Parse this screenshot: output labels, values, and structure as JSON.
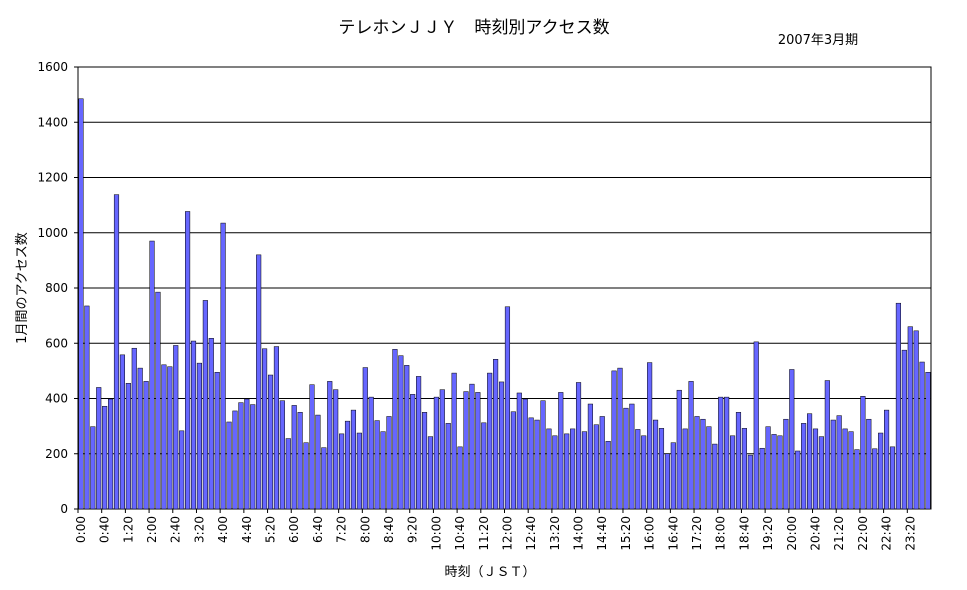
{
  "chart_data": {
    "type": "bar",
    "title": "テレホンＪＪＹ　時刻別アクセス数",
    "subtitle": "2007年3月期",
    "xlabel": "時刻（ＪＳＴ）",
    "ylabel": "1月間のアクセス数",
    "ylim": [
      0,
      1600
    ],
    "yticks": [
      0,
      200,
      400,
      600,
      800,
      1000,
      1200,
      1400,
      1600
    ],
    "grid": true,
    "bar_color": "#6666ff",
    "x_tick_labels": [
      "0:00",
      "0:40",
      "1:20",
      "2:00",
      "2:40",
      "3:20",
      "4:00",
      "4:40",
      "5:20",
      "6:00",
      "6:40",
      "7:20",
      "8:00",
      "8:40",
      "9:20",
      "10:00",
      "10:40",
      "11:20",
      "12:00",
      "12:40",
      "13:20",
      "14:00",
      "14:40",
      "15:20",
      "16:00",
      "16:40",
      "17:20",
      "18:00",
      "18:40",
      "19:20",
      "20:00",
      "20:40",
      "21:20",
      "22:00",
      "22:40",
      "23:20"
    ],
    "categories": [
      "0:00",
      "0:10",
      "0:20",
      "0:30",
      "0:40",
      "0:50",
      "1:00",
      "1:10",
      "1:20",
      "1:30",
      "1:40",
      "1:50",
      "2:00",
      "2:10",
      "2:20",
      "2:30",
      "2:40",
      "2:50",
      "3:00",
      "3:10",
      "3:20",
      "3:30",
      "3:40",
      "3:50",
      "4:00",
      "4:10",
      "4:20",
      "4:30",
      "4:40",
      "4:50",
      "5:00",
      "5:10",
      "5:20",
      "5:30",
      "5:40",
      "5:50",
      "6:00",
      "6:10",
      "6:20",
      "6:30",
      "6:40",
      "6:50",
      "7:00",
      "7:10",
      "7:20",
      "7:30",
      "7:40",
      "7:50",
      "8:00",
      "8:10",
      "8:20",
      "8:30",
      "8:40",
      "8:50",
      "9:00",
      "9:10",
      "9:20",
      "9:30",
      "9:40",
      "9:50",
      "10:00",
      "10:10",
      "10:20",
      "10:30",
      "10:40",
      "10:50",
      "11:00",
      "11:10",
      "11:20",
      "11:30",
      "11:40",
      "11:50",
      "12:00",
      "12:10",
      "12:20",
      "12:30",
      "12:40",
      "12:50",
      "13:00",
      "13:10",
      "13:20",
      "13:30",
      "13:40",
      "13:50",
      "14:00",
      "14:10",
      "14:20",
      "14:30",
      "14:40",
      "14:50",
      "15:00",
      "15:10",
      "15:20",
      "15:30",
      "15:40",
      "15:50",
      "16:00",
      "16:10",
      "16:20",
      "16:30",
      "16:40",
      "16:50",
      "17:00",
      "17:10",
      "17:20",
      "17:30",
      "17:40",
      "17:50",
      "18:00",
      "18:10",
      "18:20",
      "18:30",
      "18:40",
      "18:50",
      "19:00",
      "19:10",
      "19:20",
      "19:30",
      "19:40",
      "19:50",
      "20:00",
      "20:10",
      "20:20",
      "20:30",
      "20:40",
      "20:50",
      "21:00",
      "21:10",
      "21:20",
      "21:30",
      "21:40",
      "21:50",
      "22:00",
      "22:10",
      "22:20",
      "22:30",
      "22:40",
      "22:50",
      "23:00",
      "23:10",
      "23:20",
      "23:30",
      "23:40",
      "23:50"
    ],
    "values": [
      1485,
      735,
      298,
      440,
      372,
      398,
      1138,
      558,
      455,
      582,
      510,
      462,
      970,
      785,
      522,
      515,
      592,
      283,
      1077,
      608,
      528,
      755,
      618,
      495,
      1035,
      315,
      355,
      385,
      398,
      378,
      920,
      580,
      485,
      588,
      392,
      255,
      375,
      350,
      240,
      450,
      340,
      222,
      462,
      432,
      272,
      318,
      358,
      275,
      512,
      405,
      320,
      280,
      335,
      578,
      555,
      520,
      415,
      480,
      350,
      262,
      405,
      432,
      310,
      492,
      225,
      425,
      452,
      422,
      312,
      492,
      542,
      460,
      732,
      352,
      420,
      398,
      330,
      322,
      392,
      290,
      265,
      422,
      272,
      290,
      458,
      280,
      380,
      305,
      335,
      245,
      500,
      510,
      365,
      380,
      288,
      265,
      530,
      322,
      292,
      200,
      240,
      430,
      290,
      462,
      335,
      325,
      298,
      235,
      405,
      405,
      265,
      350,
      292,
      195,
      605,
      220,
      298,
      270,
      265,
      325,
      505,
      210,
      310,
      345,
      290,
      262,
      465,
      322,
      338,
      290,
      280,
      215,
      408,
      325,
      218,
      275,
      358,
      225,
      745,
      575,
      660,
      645,
      532,
      495
    ]
  }
}
